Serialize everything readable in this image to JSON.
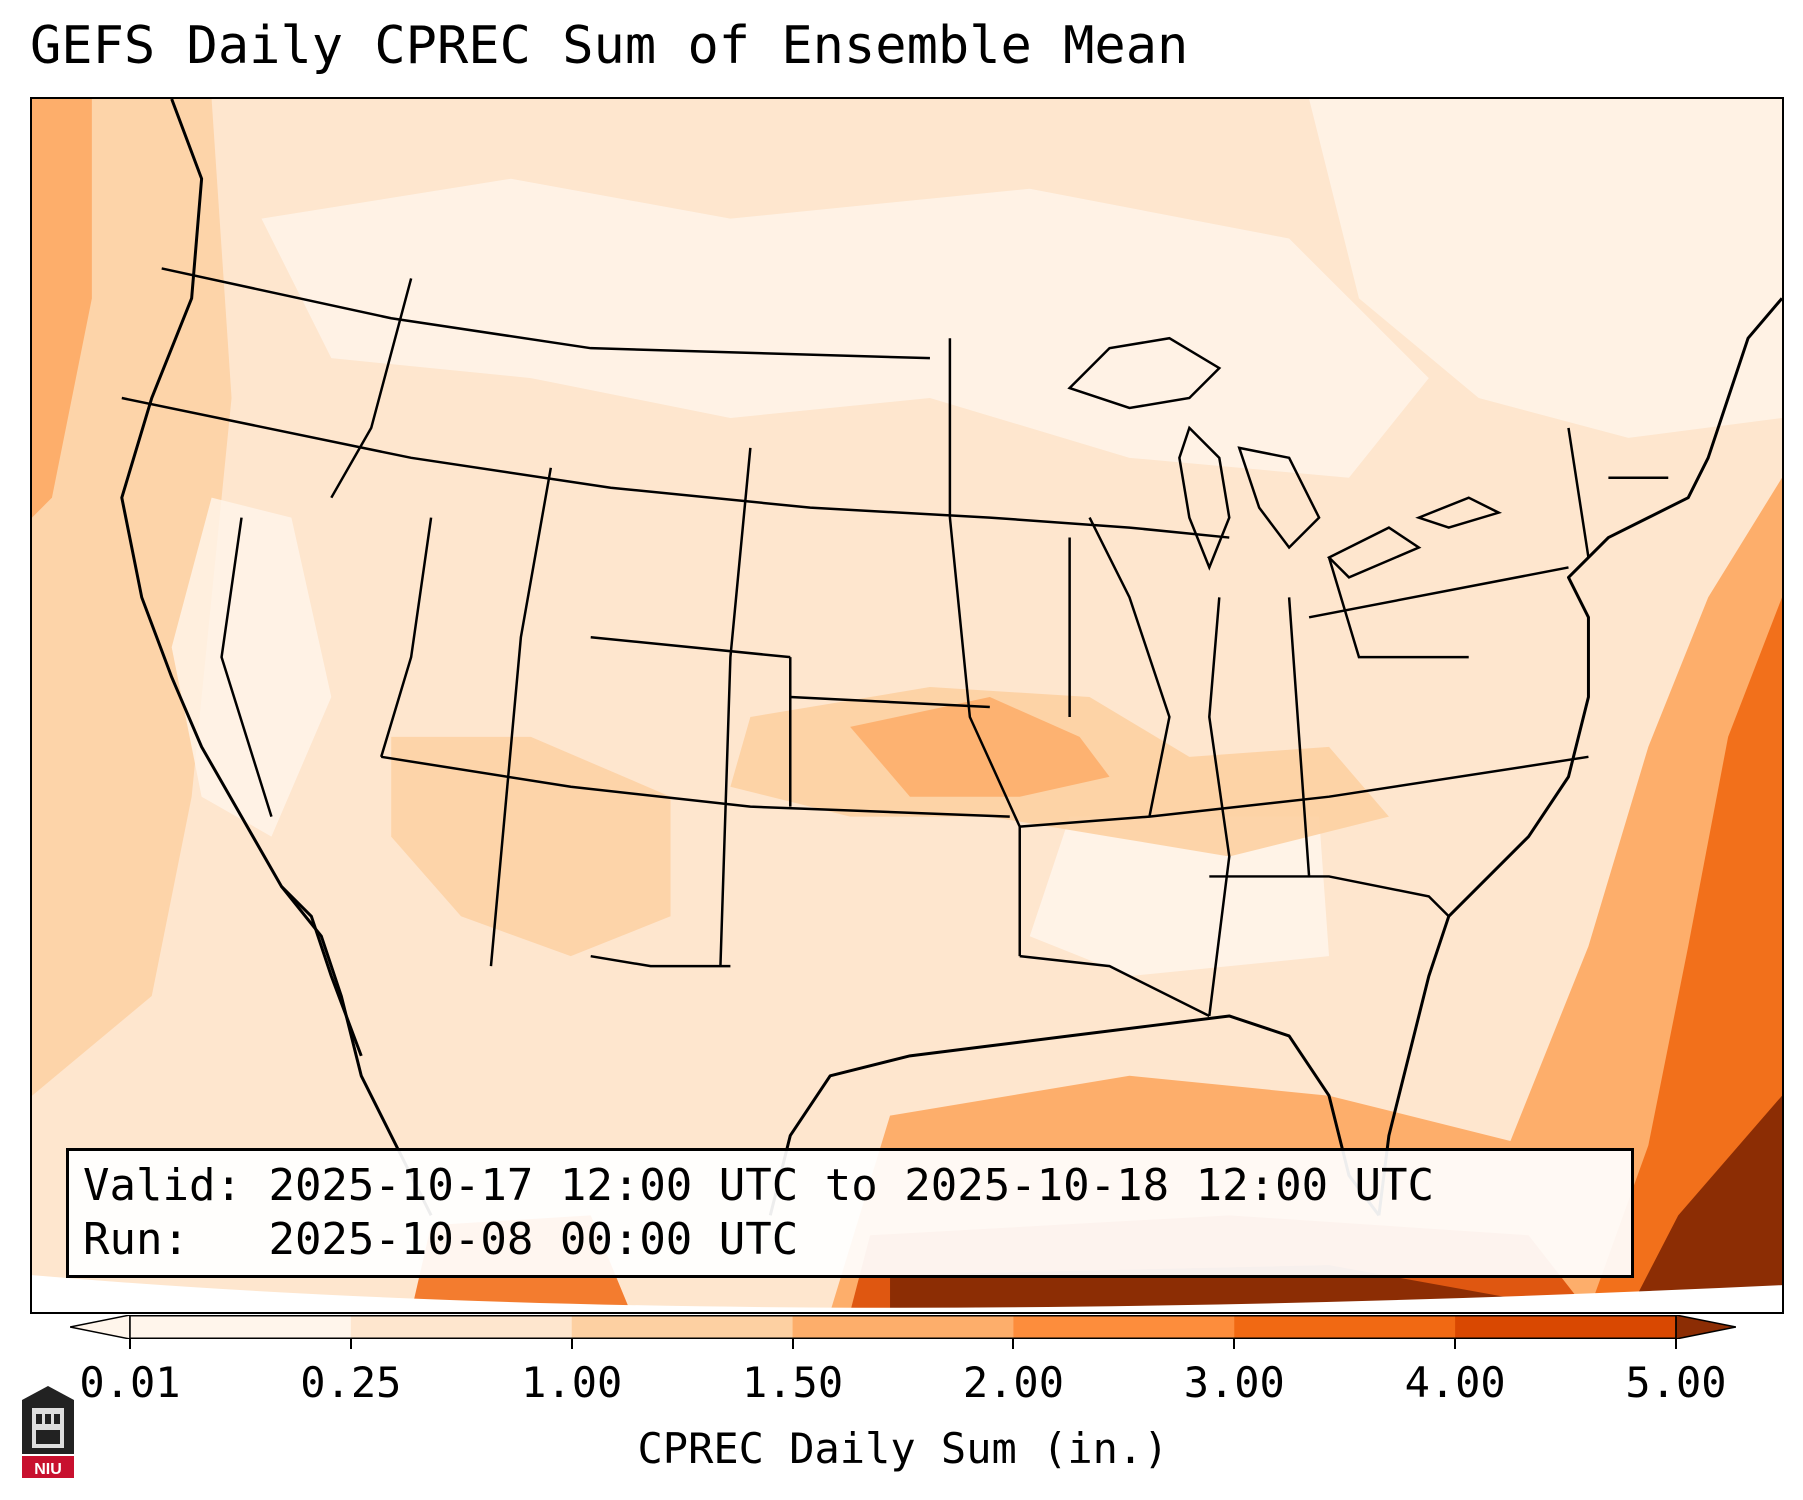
{
  "title": "GEFS Daily CPREC Sum of Ensemble Mean",
  "info": {
    "valid_label": "Valid:",
    "valid_value": "2025-10-17 12:00 UTC to 2025-10-18 12:00 UTC",
    "run_label": "Run:",
    "run_value": "2025-10-08 00:00 UTC"
  },
  "colorbar": {
    "label": "CPREC Daily Sum (in.)",
    "ticks": [
      "0.01",
      "0.25",
      "1.00",
      "1.50",
      "2.00",
      "3.00",
      "4.00",
      "5.00"
    ],
    "colors": [
      "#fff5eb",
      "#fee6ce",
      "#fdd0a2",
      "#fdae6b",
      "#fd8d3c",
      "#f16913",
      "#d94801",
      "#8c2d04"
    ],
    "extend": "both"
  },
  "map": {
    "projection": "Lambert conformal",
    "region": "CONUS",
    "colors": {
      "background": "#fff5eb",
      "light": "#fee6ce",
      "moderate": "#fdd0a2",
      "heavy": "#fdae6b",
      "very_heavy": "#f16913",
      "extreme": "#8c2d04",
      "outline": "#000000"
    }
  },
  "logo": {
    "text": "NIU",
    "color": "#c8102e"
  }
}
